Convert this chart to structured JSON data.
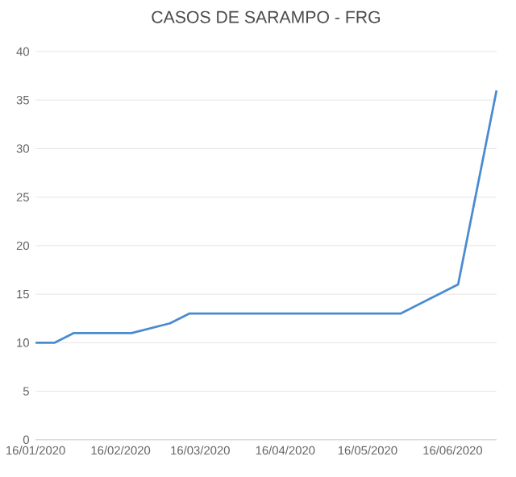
{
  "chart_data": {
    "type": "line",
    "title": "CASOS DE SARAMPO - FRG",
    "x": [
      "2020-01-16",
      "2020-01-23",
      "2020-01-30",
      "2020-02-20",
      "2020-03-05",
      "2020-03-12",
      "2020-05-28",
      "2020-06-18",
      "2020-07-02"
    ],
    "series": [
      {
        "color": "#4a8bd0",
        "values": [
          10,
          10,
          11,
          11,
          12,
          13,
          13,
          16,
          36
        ]
      }
    ],
    "xlim": [
      "2020-01-16",
      "2020-07-02"
    ],
    "xticks": [
      {
        "value": "2020-01-16",
        "label": "16/01/2020"
      },
      {
        "value": "2020-02-16",
        "label": "16/02/2020"
      },
      {
        "value": "2020-03-16",
        "label": "16/03/2020"
      },
      {
        "value": "2020-04-16",
        "label": "16/04/2020"
      },
      {
        "value": "2020-05-16",
        "label": "16/05/2020"
      },
      {
        "value": "2020-06-16",
        "label": "16/06/2020"
      }
    ],
    "ylim": [
      0,
      40
    ],
    "yticks": [
      0,
      5,
      10,
      15,
      20,
      25,
      30,
      35,
      40
    ],
    "grid": "y",
    "marker": "none",
    "line_style": "solid"
  }
}
